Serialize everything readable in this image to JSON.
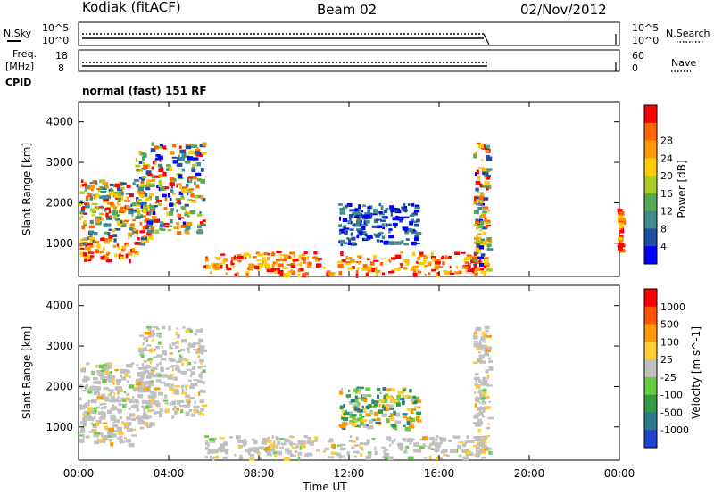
{
  "header": {
    "site": "Kodiak (fitACF)",
    "beam": "Beam 02",
    "date": "02/Nov/2012"
  },
  "top_panel": {
    "left_label": "N.Sky",
    "left_ticks": [
      "10^5",
      "10^0"
    ],
    "right_ticks": [
      "10^5",
      "10^0"
    ],
    "right_label": "N.Search"
  },
  "freq_panel": {
    "left_label_1": "Freq.",
    "left_label_2": "[MHz]",
    "left_ticks": [
      "18",
      "8"
    ],
    "right_ticks": [
      "60",
      "0"
    ],
    "right_label": "Nave"
  },
  "cpid": {
    "label": "CPID",
    "value": "normal (fast) 151 RF"
  },
  "axes": {
    "ylabel": "Slant Range [km]",
    "xlabel": "Time UT",
    "y_ticks": [
      "1000",
      "2000",
      "3000",
      "4000"
    ],
    "x_ticks": [
      "00:00",
      "04:00",
      "08:00",
      "12:00",
      "16:00",
      "20:00",
      "00:00"
    ]
  },
  "chart_data": [
    {
      "type": "heatmap",
      "title": "",
      "quantity": "Power",
      "ylabel": "Slant Range [km]",
      "xlabel": "Time UT",
      "ylim": [
        180,
        4500
      ],
      "xlim_hours": [
        0,
        24
      ],
      "colorbar": {
        "label": "Power [dB]",
        "tick_labels": [
          "4",
          "8",
          "12",
          "16",
          "20",
          "24",
          "28"
        ],
        "colors": [
          "#0000ff",
          "#1f4fa0",
          "#3f8a8a",
          "#55aa55",
          "#aacc22",
          "#ffcc00",
          "#ff9900",
          "#ff6600",
          "#ff0000"
        ]
      },
      "regions": [
        {
          "t": [
            0.0,
            3.2
          ],
          "r": [
            1000,
            2600
          ],
          "level": "mixed high"
        },
        {
          "t": [
            0.0,
            2.5
          ],
          "r": [
            600,
            1000
          ],
          "level": "high"
        },
        {
          "t": [
            2.5,
            5.5
          ],
          "r": [
            1300,
            3500
          ],
          "level": "mixed"
        },
        {
          "t": [
            5.5,
            18.0
          ],
          "r": [
            250,
            800
          ],
          "level": "high"
        },
        {
          "t": [
            11.5,
            15.0
          ],
          "r": [
            1000,
            2000
          ],
          "level": "low"
        },
        {
          "t": [
            17.5,
            18.2
          ],
          "r": [
            400,
            3500
          ],
          "level": "mixed"
        },
        {
          "t": [
            23.9,
            24.0
          ],
          "r": [
            800,
            1900
          ],
          "level": "high"
        }
      ]
    },
    {
      "type": "heatmap",
      "title": "",
      "quantity": "Velocity",
      "ylabel": "Slant Range [km]",
      "xlabel": "Time UT",
      "ylim": [
        180,
        4500
      ],
      "xlim_hours": [
        0,
        24
      ],
      "colorbar": {
        "label": "Velocity [m s^-1]",
        "tick_labels": [
          "1000",
          "500",
          "100",
          "25",
          "-25",
          "-100",
          "-500",
          "-1000"
        ],
        "colors": [
          "#2244cc",
          "#2a7a8a",
          "#339944",
          "#66cc44",
          "#c0c0c0",
          "#ffcc33",
          "#ff9900",
          "#ff5500",
          "#ff0000"
        ]
      },
      "regions": [
        {
          "t": [
            0.0,
            3.2
          ],
          "r": [
            1000,
            2600
          ],
          "level": "near zero"
        },
        {
          "t": [
            0.0,
            2.5
          ],
          "r": [
            600,
            1000
          ],
          "level": "near zero"
        },
        {
          "t": [
            2.5,
            5.5
          ],
          "r": [
            1300,
            3500
          ],
          "level": "near zero"
        },
        {
          "t": [
            5.5,
            18.0
          ],
          "r": [
            250,
            800
          ],
          "level": "near zero"
        },
        {
          "t": [
            11.5,
            15.0
          ],
          "r": [
            1000,
            2000
          ],
          "level": "mixed"
        },
        {
          "t": [
            17.5,
            18.2
          ],
          "r": [
            400,
            3500
          ],
          "level": "near zero"
        }
      ]
    }
  ]
}
